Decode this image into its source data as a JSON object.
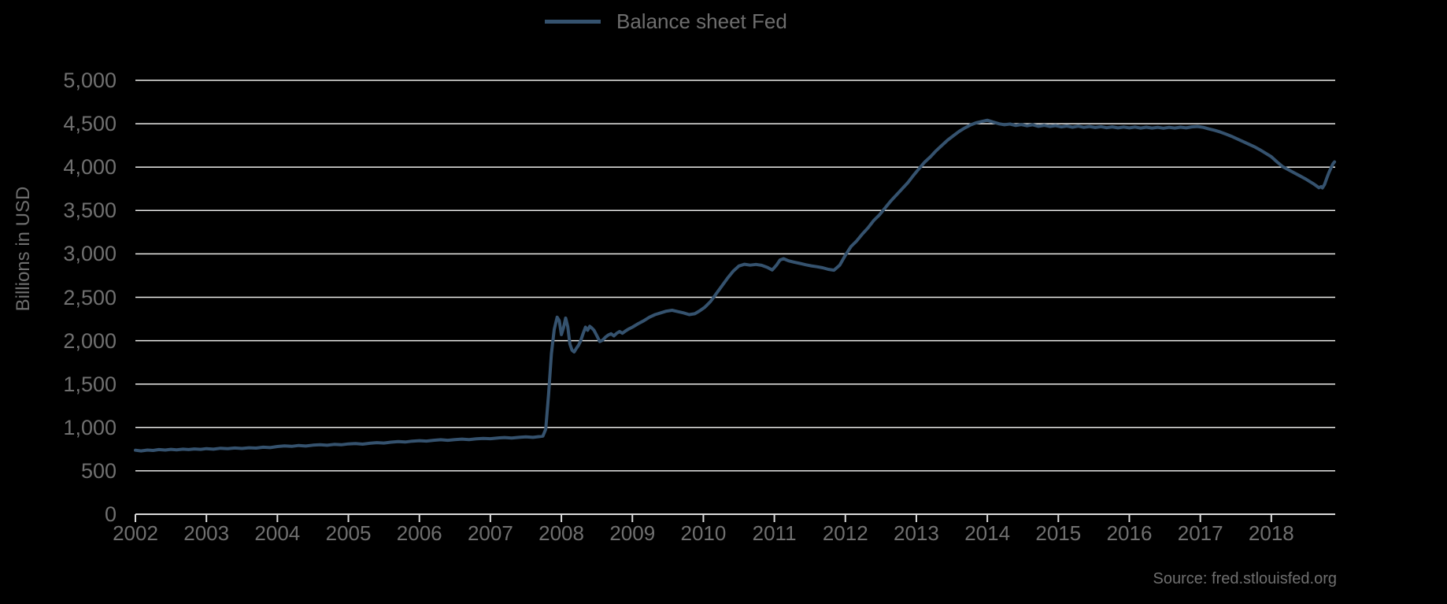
{
  "colors": {
    "background": "#000000",
    "gridline": "#EAEAE8",
    "axis": "#D9D9D9",
    "text": "#707070",
    "series_line": "#35526E"
  },
  "legend": {
    "label": "Balance sheet Fed"
  },
  "source_note": "Source: fred.stlouisfed.org",
  "chart_data": {
    "type": "line",
    "title": "",
    "xlabel": "",
    "ylabel": "Billions in USD",
    "legend_position": "top-center",
    "grid": "horizontal",
    "xlim": [
      2002,
      2018.9
    ],
    "ylim": [
      0,
      5000
    ],
    "x_tick_years": [
      2002,
      2003,
      2004,
      2005,
      2006,
      2007,
      2008,
      2009,
      2010,
      2011,
      2012,
      2013,
      2014,
      2015,
      2016,
      2017,
      2018
    ],
    "x_tick_labels": [
      "2002",
      "2003",
      "2004",
      "2005",
      "2006",
      "2007",
      "2008",
      "2009",
      "2010",
      "2011",
      "2012",
      "2013",
      "2014",
      "2015",
      "2016",
      "2017",
      "2018"
    ],
    "y_tick_values": [
      0,
      500,
      1000,
      1500,
      2000,
      2500,
      3000,
      3500,
      4000,
      4500,
      5000
    ],
    "y_tick_labels": [
      "0",
      "500",
      "1,000",
      "1,500",
      "2,000",
      "2,500",
      "3,000",
      "3,500",
      "4,000",
      "4,500",
      "5,000"
    ],
    "series": [
      {
        "name": "Balance sheet Fed",
        "color": "#35526E",
        "x": [
          2002.0,
          2002.08,
          2002.17,
          2002.25,
          2002.33,
          2002.42,
          2002.5,
          2002.58,
          2002.67,
          2002.75,
          2002.83,
          2002.92,
          2003.0,
          2003.1,
          2003.2,
          2003.3,
          2003.4,
          2003.5,
          2003.6,
          2003.7,
          2003.8,
          2003.9,
          2004.0,
          2004.1,
          2004.2,
          2004.3,
          2004.4,
          2004.5,
          2004.6,
          2004.7,
          2004.8,
          2004.9,
          2005.0,
          2005.1,
          2005.2,
          2005.3,
          2005.4,
          2005.5,
          2005.6,
          2005.7,
          2005.8,
          2005.9,
          2006.0,
          2006.1,
          2006.2,
          2006.3,
          2006.4,
          2006.5,
          2006.6,
          2006.7,
          2006.8,
          2006.9,
          2007.0,
          2007.1,
          2007.2,
          2007.3,
          2007.4,
          2007.5,
          2007.6,
          2007.68,
          2007.74,
          2007.78,
          2007.82,
          2007.86,
          2007.9,
          2007.94,
          2007.97,
          2008.0,
          2008.03,
          2008.06,
          2008.09,
          2008.12,
          2008.15,
          2008.18,
          2008.21,
          2008.24,
          2008.27,
          2008.31,
          2008.34,
          2008.37,
          2008.4,
          2008.43,
          2008.46,
          2008.5,
          2008.54,
          2008.58,
          2008.62,
          2008.66,
          2008.7,
          2008.74,
          2008.78,
          2008.82,
          2008.86,
          2008.9,
          2008.95,
          2009.0,
          2009.08,
          2009.16,
          2009.24,
          2009.32,
          2009.4,
          2009.48,
          2009.56,
          2009.64,
          2009.72,
          2009.8,
          2009.88,
          2009.95,
          2010.02,
          2010.1,
          2010.18,
          2010.26,
          2010.34,
          2010.42,
          2010.5,
          2010.58,
          2010.66,
          2010.74,
          2010.82,
          2010.9,
          2010.97,
          2011.03,
          2011.08,
          2011.13,
          2011.2,
          2011.28,
          2011.36,
          2011.44,
          2011.52,
          2011.6,
          2011.68,
          2011.76,
          2011.84,
          2011.92,
          2012.0,
          2012.08,
          2012.16,
          2012.24,
          2012.32,
          2012.4,
          2012.48,
          2012.56,
          2012.64,
          2012.72,
          2012.8,
          2012.88,
          2012.96,
          2013.04,
          2013.12,
          2013.2,
          2013.28,
          2013.36,
          2013.44,
          2013.52,
          2013.6,
          2013.68,
          2013.76,
          2013.84,
          2013.92,
          2014.0,
          2014.08,
          2014.16,
          2014.24,
          2014.32,
          2014.4,
          2014.48,
          2014.56,
          2014.64,
          2014.72,
          2014.8,
          2014.88,
          2014.96,
          2015.04,
          2015.12,
          2015.2,
          2015.28,
          2015.36,
          2015.44,
          2015.52,
          2015.6,
          2015.68,
          2015.76,
          2015.84,
          2015.92,
          2016.0,
          2016.08,
          2016.16,
          2016.24,
          2016.32,
          2016.4,
          2016.48,
          2016.56,
          2016.64,
          2016.72,
          2016.8,
          2016.88,
          2016.96,
          2017.04,
          2017.12,
          2017.2,
          2017.28,
          2017.36,
          2017.44,
          2017.52,
          2017.6,
          2017.68,
          2017.76,
          2017.84,
          2017.92,
          2018.0,
          2018.08,
          2018.16,
          2018.24,
          2018.32,
          2018.4,
          2018.48,
          2018.54,
          2018.6,
          2018.64,
          2018.67,
          2018.7,
          2018.72,
          2018.75,
          2018.78,
          2018.81,
          2018.84,
          2018.87,
          2018.89
        ],
        "y": [
          738,
          730,
          740,
          735,
          745,
          740,
          748,
          742,
          750,
          745,
          752,
          748,
          756,
          750,
          760,
          755,
          763,
          758,
          766,
          762,
          772,
          768,
          780,
          788,
          782,
          792,
          786,
          796,
          800,
          795,
          805,
          800,
          810,
          815,
          808,
          818,
          825,
          820,
          830,
          838,
          832,
          842,
          848,
          843,
          852,
          858,
          852,
          860,
          866,
          860,
          868,
          874,
          870,
          878,
          884,
          878,
          886,
          892,
          886,
          894,
          900,
          980,
          1380,
          1850,
          2130,
          2270,
          2230,
          2070,
          2150,
          2260,
          2160,
          1960,
          1890,
          1870,
          1910,
          1945,
          1995,
          2090,
          2155,
          2120,
          2165,
          2145,
          2120,
          2055,
          1990,
          2005,
          2040,
          2065,
          2080,
          2055,
          2085,
          2105,
          2085,
          2110,
          2135,
          2155,
          2195,
          2230,
          2270,
          2300,
          2320,
          2340,
          2350,
          2335,
          2320,
          2300,
          2310,
          2345,
          2385,
          2450,
          2540,
          2630,
          2720,
          2800,
          2860,
          2880,
          2870,
          2878,
          2868,
          2845,
          2815,
          2870,
          2930,
          2945,
          2920,
          2905,
          2890,
          2875,
          2862,
          2852,
          2840,
          2822,
          2812,
          2870,
          2985,
          3085,
          3150,
          3230,
          3300,
          3385,
          3450,
          3530,
          3610,
          3680,
          3750,
          3820,
          3905,
          3985,
          4060,
          4120,
          4190,
          4250,
          4310,
          4360,
          4410,
          4450,
          4485,
          4510,
          4525,
          4540,
          4520,
          4500,
          4488,
          4496,
          4480,
          4490,
          4476,
          4488,
          4470,
          4482,
          4468,
          4478,
          4464,
          4474,
          4460,
          4472,
          4458,
          4468,
          4456,
          4466,
          4454,
          4464,
          4452,
          4462,
          4452,
          4462,
          4450,
          4460,
          4450,
          4458,
          4448,
          4458,
          4450,
          4460,
          4452,
          4464,
          4468,
          4458,
          4440,
          4425,
          4405,
          4380,
          4355,
          4325,
          4295,
          4265,
          4235,
          4200,
          4160,
          4120,
          4060,
          4005,
          3970,
          3935,
          3900,
          3865,
          3835,
          3805,
          3780,
          3762,
          3775,
          3760,
          3800,
          3870,
          3935,
          3990,
          4040,
          4060
        ]
      }
    ],
    "source_note": "Source: fred.stlouisfed.org"
  }
}
